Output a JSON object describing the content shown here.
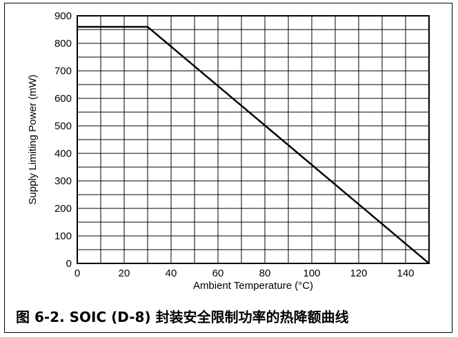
{
  "caption": "图 6-2. SOIC (D-8) 封装安全限制功率的热降额曲线",
  "chart_data": {
    "type": "line",
    "xlabel": "Ambient Temperature (°C)",
    "ylabel": "Supply Limiting Power (mW)",
    "xlim": [
      0,
      150
    ],
    "ylim": [
      0,
      900
    ],
    "xticks": [
      0,
      20,
      40,
      60,
      80,
      100,
      120,
      140
    ],
    "yticks": [
      0,
      100,
      200,
      300,
      400,
      500,
      600,
      700,
      800,
      900
    ],
    "grid": true,
    "grid_x_step": 10,
    "grid_y_step": 50,
    "series": [
      {
        "x": [
          0,
          30,
          150
        ],
        "y": [
          860,
          860,
          0
        ],
        "color": "#000000"
      }
    ]
  }
}
